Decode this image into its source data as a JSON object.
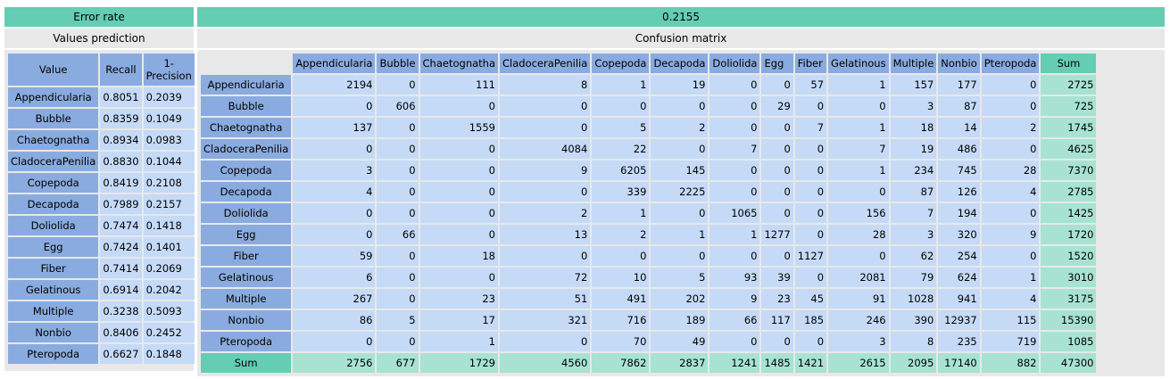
{
  "error_rate_label": "Error rate",
  "error_rate_value": "0.2155",
  "values_prediction_label": "Values prediction",
  "confusion_matrix_label": "Confusion matrix",
  "left_table": {
    "headers": [
      "Value",
      "Recall",
      "1-\nPrecision"
    ],
    "rows": [
      [
        "Appendicularia",
        "0.8051",
        "0.2039"
      ],
      [
        "Bubble",
        "0.8359",
        "0.1049"
      ],
      [
        "Chaetognatha",
        "0.8934",
        "0.0983"
      ],
      [
        "CladoceraPenilia",
        "0.8830",
        "0.1044"
      ],
      [
        "Copepoda",
        "0.8419",
        "0.2108"
      ],
      [
        "Decapoda",
        "0.7989",
        "0.2157"
      ],
      [
        "Doliolida",
        "0.7474",
        "0.1418"
      ],
      [
        "Egg",
        "0.7424",
        "0.1401"
      ],
      [
        "Fiber",
        "0.7414",
        "0.2069"
      ],
      [
        "Gelatinous",
        "0.6914",
        "0.2042"
      ],
      [
        "Multiple",
        "0.3238",
        "0.5093"
      ],
      [
        "Nonbio",
        "0.8406",
        "0.2452"
      ],
      [
        "Pteropoda",
        "0.6627",
        "0.1848"
      ]
    ]
  },
  "confusion_matrix": {
    "columns": [
      "Appendicularia",
      "Bubble",
      "Chaetognatha",
      "CladoceraPenilia",
      "Copepoda",
      "Decapoda",
      "Doliolida",
      "Egg",
      "Fiber",
      "Gelatinous",
      "Multiple",
      "Nonbio",
      "Pteropoda"
    ],
    "sum_label": "Sum",
    "rows": [
      {
        "label": "Appendicularia",
        "values": [
          "2194",
          "0",
          "111",
          "8",
          "1",
          "19",
          "0",
          "0",
          "57",
          "1",
          "157",
          "177",
          "0"
        ],
        "sum": "2725"
      },
      {
        "label": "Bubble",
        "values": [
          "0",
          "606",
          "0",
          "0",
          "0",
          "0",
          "0",
          "29",
          "0",
          "0",
          "3",
          "87",
          "0"
        ],
        "sum": "725"
      },
      {
        "label": "Chaetognatha",
        "values": [
          "137",
          "0",
          "1559",
          "0",
          "5",
          "2",
          "0",
          "0",
          "7",
          "1",
          "18",
          "14",
          "2"
        ],
        "sum": "1745"
      },
      {
        "label": "CladoceraPenilia",
        "values": [
          "0",
          "0",
          "0",
          "4084",
          "22",
          "0",
          "7",
          "0",
          "0",
          "7",
          "19",
          "486",
          "0"
        ],
        "sum": "4625"
      },
      {
        "label": "Copepoda",
        "values": [
          "3",
          "0",
          "0",
          "9",
          "6205",
          "145",
          "0",
          "0",
          "0",
          "1",
          "234",
          "745",
          "28"
        ],
        "sum": "7370"
      },
      {
        "label": "Decapoda",
        "values": [
          "4",
          "0",
          "0",
          "0",
          "339",
          "2225",
          "0",
          "0",
          "0",
          "0",
          "87",
          "126",
          "4"
        ],
        "sum": "2785"
      },
      {
        "label": "Doliolida",
        "values": [
          "0",
          "0",
          "0",
          "2",
          "1",
          "0",
          "1065",
          "0",
          "0",
          "156",
          "7",
          "194",
          "0"
        ],
        "sum": "1425"
      },
      {
        "label": "Egg",
        "values": [
          "0",
          "66",
          "0",
          "13",
          "2",
          "1",
          "1",
          "1277",
          "0",
          "28",
          "3",
          "320",
          "9"
        ],
        "sum": "1720"
      },
      {
        "label": "Fiber",
        "values": [
          "59",
          "0",
          "18",
          "0",
          "0",
          "0",
          "0",
          "0",
          "1127",
          "0",
          "62",
          "254",
          "0"
        ],
        "sum": "1520"
      },
      {
        "label": "Gelatinous",
        "values": [
          "6",
          "0",
          "0",
          "72",
          "10",
          "5",
          "93",
          "39",
          "0",
          "2081",
          "79",
          "624",
          "1"
        ],
        "sum": "3010"
      },
      {
        "label": "Multiple",
        "values": [
          "267",
          "0",
          "23",
          "51",
          "491",
          "202",
          "9",
          "23",
          "45",
          "91",
          "1028",
          "941",
          "4"
        ],
        "sum": "3175"
      },
      {
        "label": "Nonbio",
        "values": [
          "86",
          "5",
          "17",
          "321",
          "716",
          "189",
          "66",
          "117",
          "185",
          "246",
          "390",
          "12937",
          "115"
        ],
        "sum": "15390"
      },
      {
        "label": "Pteropoda",
        "values": [
          "0",
          "0",
          "1",
          "0",
          "70",
          "49",
          "0",
          "0",
          "0",
          "3",
          "8",
          "235",
          "719"
        ],
        "sum": "1085"
      }
    ],
    "sum_row": {
      "label": "Sum",
      "values": [
        "2756",
        "677",
        "1729",
        "4560",
        "7862",
        "2837",
        "1241",
        "1485",
        "1421",
        "2615",
        "2095",
        "17140",
        "882"
      ],
      "sum": "47300"
    }
  }
}
